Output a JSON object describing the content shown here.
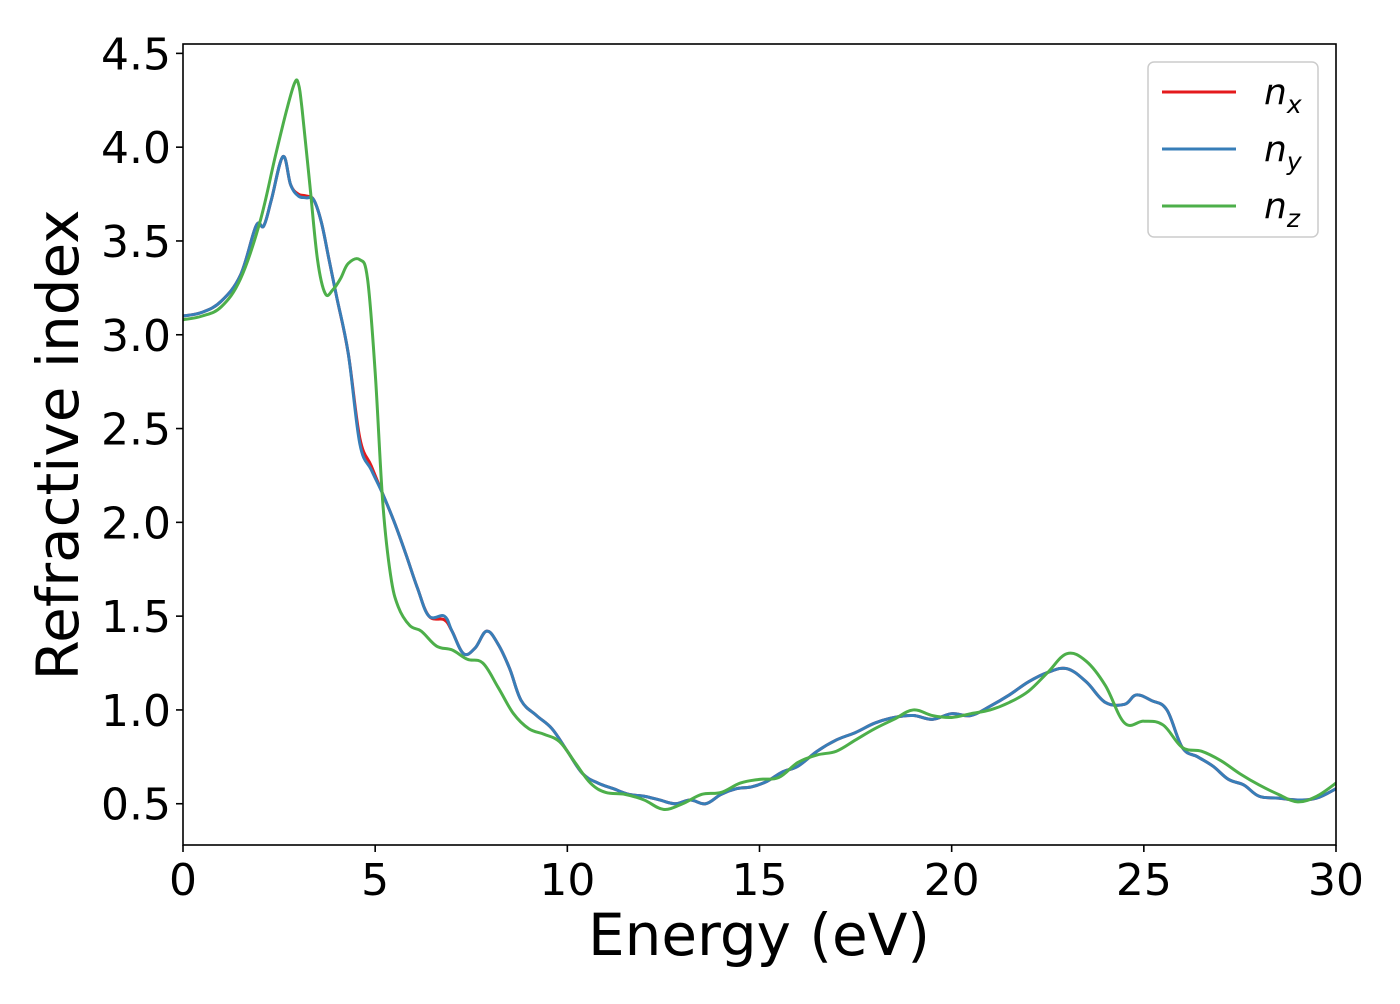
{
  "chart_data": {
    "type": "line",
    "title": "",
    "xlabel": "Energy (eV)",
    "ylabel": "Refractive index",
    "xlim": [
      0,
      30
    ],
    "ylim": [
      0.28,
      4.55
    ],
    "xticks": [
      0,
      5,
      10,
      15,
      20,
      25,
      30
    ],
    "xtick_labels": [
      "0",
      "5",
      "10",
      "15",
      "20",
      "25",
      "30"
    ],
    "yticks": [
      0.5,
      1.0,
      1.5,
      2.0,
      2.5,
      3.0,
      3.5,
      4.0,
      4.5
    ],
    "ytick_labels": [
      "0.5",
      "1.0",
      "1.5",
      "2.0",
      "2.5",
      "3.0",
      "3.5",
      "4.0",
      "4.5"
    ],
    "grid": false,
    "legend_position": "top-right",
    "series": [
      {
        "name": "n_x",
        "label_base": "n",
        "label_sub": "x",
        "color": "#e41a1c",
        "x": [
          0,
          0.5,
          1.0,
          1.5,
          1.9,
          2.1,
          2.3,
          2.6,
          2.8,
          3.0,
          3.2,
          3.4,
          3.6,
          3.8,
          4.0,
          4.3,
          4.6,
          4.9,
          5.2,
          5.5,
          5.8,
          6.1,
          6.4,
          6.8,
          7.0,
          7.3,
          7.6,
          7.9,
          8.2,
          8.5,
          8.8,
          9.2,
          9.6,
          10.0,
          10.4,
          10.8,
          11.2,
          11.6,
          12.0,
          12.4,
          12.8,
          13.2,
          13.6,
          14.0,
          14.4,
          14.8,
          15.2,
          15.6,
          16.0,
          16.5,
          17.0,
          17.5,
          18.0,
          18.5,
          19.0,
          19.5,
          20.0,
          20.5,
          21.0,
          21.5,
          22.0,
          22.5,
          23.0,
          23.5,
          24.0,
          24.5,
          24.8,
          25.2,
          25.6,
          26.0,
          26.4,
          26.8,
          27.2,
          27.6,
          28.0,
          28.5,
          29.0,
          29.5,
          30.0
        ],
        "y": [
          3.1,
          3.12,
          3.18,
          3.32,
          3.58,
          3.58,
          3.72,
          3.95,
          3.8,
          3.75,
          3.74,
          3.72,
          3.6,
          3.4,
          3.2,
          2.9,
          2.45,
          2.3,
          2.15,
          2.0,
          1.83,
          1.65,
          1.5,
          1.48,
          1.42,
          1.3,
          1.33,
          1.42,
          1.35,
          1.22,
          1.05,
          0.97,
          0.9,
          0.78,
          0.66,
          0.61,
          0.58,
          0.55,
          0.54,
          0.52,
          0.5,
          0.52,
          0.5,
          0.55,
          0.58,
          0.59,
          0.62,
          0.67,
          0.7,
          0.78,
          0.84,
          0.88,
          0.93,
          0.96,
          0.97,
          0.95,
          0.98,
          0.97,
          1.02,
          1.08,
          1.15,
          1.2,
          1.22,
          1.15,
          1.04,
          1.03,
          1.08,
          1.05,
          1.0,
          0.8,
          0.75,
          0.7,
          0.63,
          0.6,
          0.54,
          0.53,
          0.52,
          0.53,
          0.58
        ]
      },
      {
        "name": "n_y",
        "label_base": "n",
        "label_sub": "y",
        "color": "#377eb8",
        "x": [
          0,
          0.5,
          1.0,
          1.5,
          1.9,
          2.1,
          2.3,
          2.6,
          2.8,
          3.0,
          3.2,
          3.4,
          3.6,
          3.8,
          4.0,
          4.3,
          4.6,
          4.9,
          5.2,
          5.5,
          5.8,
          6.1,
          6.4,
          6.8,
          7.0,
          7.3,
          7.6,
          7.9,
          8.2,
          8.5,
          8.8,
          9.2,
          9.6,
          10.0,
          10.4,
          10.8,
          11.2,
          11.6,
          12.0,
          12.4,
          12.8,
          13.2,
          13.6,
          14.0,
          14.4,
          14.8,
          15.2,
          15.6,
          16.0,
          16.5,
          17.0,
          17.5,
          18.0,
          18.5,
          19.0,
          19.5,
          20.0,
          20.5,
          21.0,
          21.5,
          22.0,
          22.5,
          23.0,
          23.5,
          24.0,
          24.5,
          24.8,
          25.2,
          25.6,
          26.0,
          26.4,
          26.8,
          27.2,
          27.6,
          28.0,
          28.5,
          29.0,
          29.5,
          30.0
        ],
        "y": [
          3.1,
          3.12,
          3.18,
          3.32,
          3.58,
          3.58,
          3.72,
          3.95,
          3.8,
          3.74,
          3.73,
          3.72,
          3.6,
          3.4,
          3.2,
          2.9,
          2.42,
          2.28,
          2.15,
          2.0,
          1.83,
          1.65,
          1.5,
          1.5,
          1.42,
          1.3,
          1.33,
          1.42,
          1.35,
          1.22,
          1.05,
          0.97,
          0.9,
          0.78,
          0.66,
          0.61,
          0.58,
          0.55,
          0.54,
          0.52,
          0.5,
          0.52,
          0.5,
          0.55,
          0.58,
          0.59,
          0.62,
          0.67,
          0.7,
          0.78,
          0.84,
          0.88,
          0.93,
          0.96,
          0.97,
          0.95,
          0.98,
          0.97,
          1.02,
          1.08,
          1.15,
          1.2,
          1.22,
          1.15,
          1.04,
          1.03,
          1.08,
          1.05,
          1.0,
          0.8,
          0.75,
          0.7,
          0.63,
          0.6,
          0.54,
          0.53,
          0.52,
          0.53,
          0.58
        ]
      },
      {
        "name": "n_z",
        "label_base": "n",
        "label_sub": "z",
        "color": "#4daf4a",
        "x": [
          0,
          0.5,
          1.0,
          1.5,
          2.0,
          2.4,
          2.7,
          2.9,
          3.0,
          3.1,
          3.3,
          3.5,
          3.7,
          3.9,
          4.1,
          4.3,
          4.6,
          4.8,
          5.0,
          5.2,
          5.4,
          5.6,
          5.9,
          6.2,
          6.6,
          7.0,
          7.4,
          7.8,
          8.2,
          8.6,
          9.0,
          9.4,
          9.8,
          10.2,
          10.6,
          11.0,
          11.5,
          12.0,
          12.5,
          13.0,
          13.5,
          14.0,
          14.5,
          15.0,
          15.5,
          16.0,
          16.5,
          17.0,
          17.5,
          18.0,
          18.5,
          19.0,
          19.5,
          20.0,
          20.5,
          21.0,
          21.5,
          22.0,
          22.5,
          23.0,
          23.5,
          24.0,
          24.5,
          25.0,
          25.5,
          26.0,
          26.5,
          27.0,
          27.5,
          28.0,
          28.5,
          29.0,
          29.5,
          30.0
        ],
        "y": [
          3.08,
          3.1,
          3.15,
          3.3,
          3.6,
          3.95,
          4.2,
          4.34,
          4.34,
          4.2,
          3.8,
          3.4,
          3.22,
          3.24,
          3.3,
          3.38,
          3.4,
          3.3,
          2.8,
          2.1,
          1.72,
          1.55,
          1.45,
          1.42,
          1.34,
          1.32,
          1.27,
          1.25,
          1.12,
          0.98,
          0.9,
          0.87,
          0.83,
          0.72,
          0.61,
          0.56,
          0.55,
          0.52,
          0.47,
          0.5,
          0.55,
          0.56,
          0.61,
          0.63,
          0.64,
          0.72,
          0.76,
          0.78,
          0.84,
          0.9,
          0.95,
          1.0,
          0.97,
          0.96,
          0.98,
          1.0,
          1.04,
          1.1,
          1.2,
          1.3,
          1.26,
          1.13,
          0.93,
          0.94,
          0.92,
          0.8,
          0.78,
          0.73,
          0.66,
          0.6,
          0.55,
          0.51,
          0.54,
          0.61
        ]
      }
    ]
  }
}
